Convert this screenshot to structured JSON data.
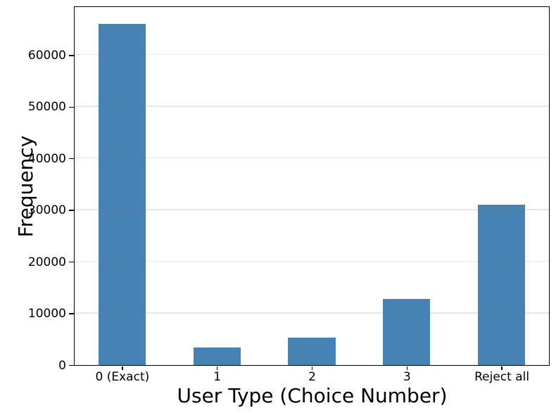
{
  "figure": {
    "background": "#ffffff",
    "text_color": "#000000"
  },
  "chart_data": {
    "type": "bar",
    "categories": [
      "0 (Exact)",
      "1",
      "2",
      "3",
      "Reject all"
    ],
    "values": [
      66000,
      3400,
      5300,
      12800,
      31000
    ],
    "title": "",
    "xlabel": "User Type (Choice Number)",
    "ylabel": "Frequency",
    "ylim": [
      0,
      69300
    ],
    "yticks": [
      0,
      10000,
      20000,
      30000,
      40000,
      50000,
      60000
    ],
    "bar_color": "#4682B4",
    "bar_width_fraction": 0.5,
    "grid": "horizontal",
    "gridlines_over_bars": true,
    "legend_position": "none"
  }
}
